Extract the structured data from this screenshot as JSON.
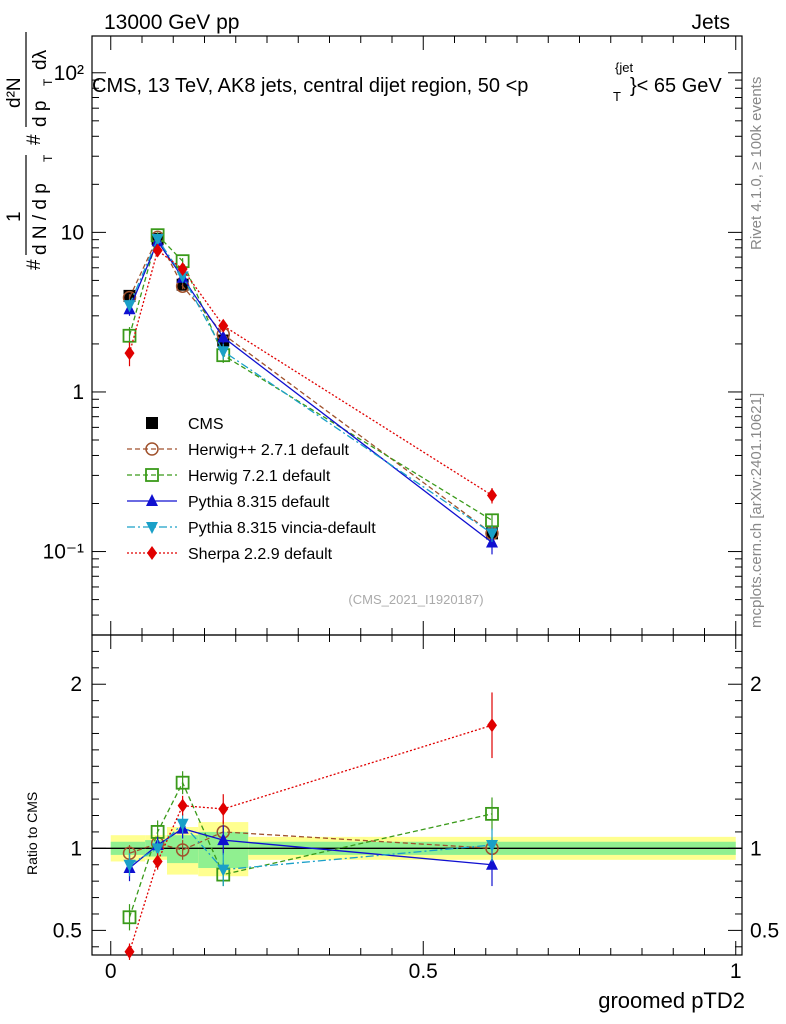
{
  "header": {
    "left": "13000 GeV pp",
    "right": "Jets"
  },
  "right_labels": {
    "rivet": "Rivet 4.1.0, ≥ 100k events",
    "mcplots": "mcplots.cern.ch [arXiv:2401.10621]"
  },
  "main_title": "CMS, 13 TeV, AK8 jets, central dijet region, 50 <p",
  "main_title_sup": "{jet",
  "main_title_sub": "T",
  "main_title_end": "}< 65 GeV",
  "analysis_tag": "(CMS_2021_I1920187)",
  "y_axis": {
    "upper_hash1": "#",
    "upper_frac_num": "1",
    "upper_frac_den": "d N / d p",
    "upper_frac_den_sub": "T",
    "upper_hash2": "#",
    "upper_num2": "d²N",
    "upper_den2": "d p",
    "upper_den2_sub": "T",
    "upper_den2_end": "dλ",
    "lower": "Ratio to CMS"
  },
  "x_axis_label": "groomed pTD2",
  "colors": {
    "cms": "#000000",
    "herwigpp": "#a0522d",
    "herwig7": "#3a9a1a",
    "pythia": "#1010d0",
    "vincia": "#1aa0c8",
    "sherpa": "#e00000",
    "band_inner": "#90f090",
    "band_outer": "#ffff90"
  },
  "chart_data": [
    {
      "type": "scatter",
      "panel": "main",
      "yscale": "log",
      "xlim": [
        -0.03,
        1.01
      ],
      "ylim": [
        0.03,
        170
      ],
      "x_ticks": [
        0,
        0.5,
        1
      ],
      "y_tick_labels": [
        "10⁻¹",
        "1",
        "10",
        "10²"
      ],
      "y_tick_values": [
        0.1,
        1,
        10,
        100
      ],
      "x": [
        0.03,
        0.075,
        0.115,
        0.18,
        0.61
      ],
      "series": [
        {
          "name": "CMS",
          "key": "cms",
          "marker": "square-filled",
          "line": "none",
          "values": [
            4.0,
            9.1,
            4.7,
            2.1,
            0.13
          ]
        },
        {
          "name": "Herwig++ 2.7.1 default",
          "key": "herwigpp",
          "marker": "circle-open",
          "line": "dashed",
          "values": [
            3.9,
            9.3,
            4.6,
            2.3,
            0.13
          ],
          "errors": [
            0.2,
            0.3,
            0.2,
            0.12,
            0.01
          ]
        },
        {
          "name": "Herwig 7.2.1 default",
          "key": "herwig7",
          "marker": "square-open",
          "line": "dashed",
          "values": [
            2.25,
            9.6,
            6.6,
            1.7,
            0.157
          ],
          "errors": [
            0.3,
            0.4,
            0.3,
            0.18,
            0.015
          ]
        },
        {
          "name": "Pythia 8.315 default",
          "key": "pythia",
          "marker": "triangle-up",
          "line": "solid",
          "values": [
            3.3,
            8.8,
            5.2,
            2.2,
            0.114
          ],
          "errors": [
            0.3,
            0.3,
            0.2,
            0.2,
            0.018
          ]
        },
        {
          "name": "Pythia 8.315 vincia-default",
          "key": "vincia",
          "marker": "triangle-down",
          "line": "dashdot",
          "values": [
            3.5,
            9.1,
            5.3,
            1.8,
            0.13
          ],
          "errors": [
            0.3,
            0.4,
            0.3,
            0.2,
            0.015
          ]
        },
        {
          "name": "Sherpa 2.2.9 default",
          "key": "sherpa",
          "marker": "diamond",
          "line": "dotted",
          "values": [
            1.75,
            7.7,
            5.9,
            2.6,
            0.225
          ],
          "errors": [
            0.3,
            0.4,
            0.3,
            0.2,
            0.025
          ]
        }
      ]
    },
    {
      "type": "scatter",
      "panel": "ratio",
      "yscale": "linear",
      "xlim": [
        -0.03,
        1.01
      ],
      "ylim": [
        0.35,
        2.3
      ],
      "x_tick_labels": [
        "0",
        "0.5",
        "1"
      ],
      "x_tick_values": [
        0,
        0.5,
        1
      ],
      "y_tick_labels": [
        "0.5",
        "1",
        "2"
      ],
      "y_tick_values": [
        0.5,
        1,
        2
      ],
      "x": [
        0.03,
        0.075,
        0.115,
        0.18,
        0.61
      ],
      "bands": [
        {
          "x_edges": [
            0.0,
            0.055,
            0.09,
            0.14,
            0.22,
            1.0
          ],
          "outer": [
            [
              0.92,
              1.08
            ],
            [
              0.93,
              1.08
            ],
            [
              0.84,
              1.13
            ],
            [
              0.83,
              1.16
            ],
            [
              0.93,
              1.07
            ]
          ],
          "inner": [
            [
              0.96,
              1.04
            ],
            [
              0.95,
              1.05
            ],
            [
              0.91,
              1.08
            ],
            [
              0.88,
              1.1
            ],
            [
              0.96,
              1.04
            ]
          ]
        }
      ],
      "series": [
        {
          "key": "herwigpp",
          "values": [
            0.97,
            1.03,
            0.99,
            1.1,
            1.0
          ],
          "errors": [
            0.05,
            0.05,
            0.06,
            0.07,
            0.06
          ]
        },
        {
          "key": "herwig7",
          "values": [
            0.58,
            1.1,
            1.4,
            0.84,
            1.21
          ],
          "errors": [
            0.08,
            0.07,
            0.07,
            0.07,
            0.1
          ]
        },
        {
          "key": "pythia",
          "values": [
            0.88,
            1.02,
            1.12,
            1.05,
            0.9
          ],
          "errors": [
            0.08,
            0.05,
            0.06,
            0.09,
            0.13
          ]
        },
        {
          "key": "vincia",
          "values": [
            0.9,
            1.0,
            1.15,
            0.87,
            1.02
          ],
          "errors": [
            0.07,
            0.05,
            0.06,
            0.1,
            0.1
          ]
        },
        {
          "key": "sherpa",
          "values": [
            0.37,
            0.92,
            1.26,
            1.24,
            1.75
          ],
          "errors": [
            0.05,
            0.05,
            0.06,
            0.09,
            0.2
          ]
        }
      ]
    }
  ]
}
